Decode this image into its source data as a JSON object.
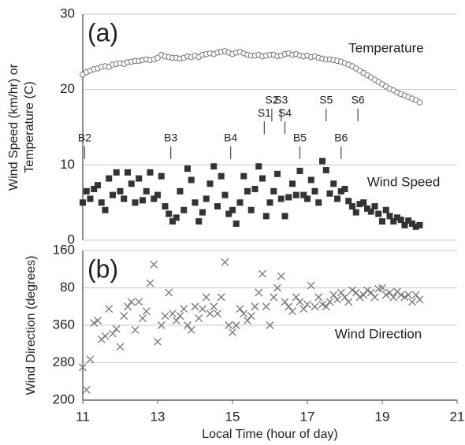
{
  "chart_data": [
    {
      "type": "scatter",
      "panel_label": "(a)",
      "ylabel": [
        "Wind Speed (km/hr) or",
        "Temperature (C)"
      ],
      "xlim": [
        11,
        21
      ],
      "ylim": [
        0,
        30
      ],
      "yticks": [
        0,
        10,
        20,
        30
      ],
      "grid": true,
      "series": [
        {
          "name": "Temperature",
          "marker": "circle",
          "color": "#777777",
          "x": [
            11.0,
            11.1,
            11.2,
            11.3,
            11.4,
            11.5,
            11.6,
            11.7,
            11.8,
            11.9,
            12.0,
            12.1,
            12.2,
            12.3,
            12.4,
            12.5,
            12.6,
            12.7,
            12.8,
            12.9,
            13.0,
            13.1,
            13.2,
            13.3,
            13.4,
            13.5,
            13.6,
            13.7,
            13.8,
            13.9,
            14.0,
            14.1,
            14.2,
            14.3,
            14.4,
            14.5,
            14.6,
            14.7,
            14.8,
            14.9,
            15.0,
            15.1,
            15.2,
            15.3,
            15.4,
            15.5,
            15.6,
            15.7,
            15.8,
            15.9,
            16.0,
            16.1,
            16.2,
            16.3,
            16.4,
            16.5,
            16.6,
            16.7,
            16.8,
            16.9,
            17.0,
            17.1,
            17.2,
            17.3,
            17.4,
            17.5,
            17.6,
            17.7,
            17.8,
            17.9,
            18.0,
            18.1,
            18.2,
            18.3,
            18.4,
            18.5,
            18.6,
            18.7,
            18.8,
            18.9,
            19.0,
            19.1,
            19.2,
            19.3,
            19.4,
            19.5,
            19.6,
            19.7,
            19.8,
            19.9,
            20.0
          ],
          "values": [
            22.0,
            22.3,
            22.5,
            22.7,
            22.8,
            23.0,
            23.1,
            23.0,
            23.3,
            23.4,
            23.5,
            23.4,
            23.6,
            23.7,
            23.8,
            23.8,
            23.9,
            24.0,
            23.9,
            24.0,
            24.2,
            24.6,
            24.4,
            24.3,
            24.2,
            24.2,
            24.1,
            24.2,
            24.4,
            24.3,
            24.5,
            24.3,
            24.6,
            24.7,
            24.8,
            24.7,
            24.9,
            25.0,
            25.1,
            24.9,
            24.7,
            24.9,
            25.0,
            24.8,
            24.6,
            24.5,
            24.5,
            24.6,
            24.4,
            24.5,
            24.6,
            24.6,
            24.4,
            24.5,
            24.7,
            24.8,
            24.6,
            24.7,
            24.5,
            24.4,
            24.5,
            24.3,
            24.4,
            24.2,
            24.1,
            24.0,
            24.0,
            23.9,
            23.8,
            23.7,
            23.5,
            23.3,
            23.1,
            22.8,
            22.5,
            22.2,
            21.9,
            21.6,
            21.3,
            21.0,
            20.7,
            20.4,
            20.1,
            19.9,
            19.6,
            19.4,
            19.2,
            19.0,
            18.8,
            18.6,
            18.3
          ]
        },
        {
          "name": "Wind Speed",
          "marker": "square",
          "color": "#333333",
          "x": [
            11.0,
            11.1,
            11.2,
            11.3,
            11.4,
            11.5,
            11.6,
            11.7,
            11.8,
            11.9,
            12.0,
            12.1,
            12.2,
            12.3,
            12.4,
            12.5,
            12.6,
            12.7,
            12.8,
            12.9,
            13.0,
            13.1,
            13.2,
            13.3,
            13.4,
            13.5,
            13.6,
            13.7,
            13.8,
            13.9,
            14.0,
            14.1,
            14.2,
            14.3,
            14.4,
            14.5,
            14.6,
            14.7,
            14.8,
            14.9,
            15.0,
            15.1,
            15.2,
            15.3,
            15.4,
            15.5,
            15.6,
            15.7,
            15.8,
            15.9,
            16.0,
            16.1,
            16.2,
            16.3,
            16.4,
            16.5,
            16.6,
            16.7,
            16.8,
            16.9,
            17.0,
            17.1,
            17.2,
            17.3,
            17.4,
            17.5,
            17.6,
            17.7,
            17.8,
            17.9,
            18.0,
            18.1,
            18.2,
            18.3,
            18.4,
            18.5,
            18.6,
            18.7,
            18.8,
            18.9,
            19.0,
            19.1,
            19.2,
            19.3,
            19.4,
            19.5,
            19.6,
            19.7,
            19.8,
            19.9,
            20.0
          ],
          "values": [
            5,
            6.5,
            5.5,
            6.8,
            7.3,
            5,
            4,
            8.2,
            6,
            9,
            6.5,
            5.5,
            9,
            7.5,
            5,
            8.2,
            5.3,
            6.5,
            9,
            5.5,
            6,
            8.5,
            4.5,
            3.5,
            2.5,
            3,
            6.5,
            4,
            9.5,
            8,
            5,
            2.5,
            3.7,
            5.5,
            7.5,
            9.8,
            4.5,
            8.5,
            6,
            3.5,
            4,
            2.2,
            5,
            8.5,
            6.5,
            4,
            6.8,
            9.8,
            8.2,
            3.2,
            5,
            6.5,
            8.8,
            5.5,
            3.2,
            5.7,
            7.5,
            6,
            9.2,
            6,
            5.5,
            8,
            6.5,
            5,
            10.5,
            9.3,
            6.2,
            7.5,
            5.5,
            6.5,
            6.8,
            5.2,
            4.5,
            3.7,
            4.8,
            5,
            4.2,
            3.8,
            4.5,
            3.5,
            2.5,
            4,
            3.2,
            2.5,
            3,
            2.7,
            2,
            2.6,
            2.2,
            1.8,
            2
          ]
        }
      ],
      "annotations": [
        {
          "text": "B2",
          "x": 11.05,
          "y": 13.5
        },
        {
          "text": "B3",
          "x": 13.35,
          "y": 13.5
        },
        {
          "text": "B4",
          "x": 14.95,
          "y": 13.5
        },
        {
          "text": "B5",
          "x": 16.8,
          "y": 13.5
        },
        {
          "text": "B6",
          "x": 17.9,
          "y": 13.5
        },
        {
          "text": "S1",
          "x": 15.85,
          "y": 16.8
        },
        {
          "text": "S2",
          "x": 16.05,
          "y": 18.5
        },
        {
          "text": "S3",
          "x": 16.3,
          "y": 18.5
        },
        {
          "text": "S4",
          "x": 16.4,
          "y": 16.8
        },
        {
          "text": "S5",
          "x": 17.5,
          "y": 18.5
        },
        {
          "text": "S6",
          "x": 18.35,
          "y": 18.5
        }
      ]
    },
    {
      "type": "scatter",
      "panel_label": "(b)",
      "ylabel": [
        "Wind Direction (degrees)"
      ],
      "xlabel": "Local Time (hour of day)",
      "xlim": [
        11,
        21
      ],
      "xticks": [
        11,
        13,
        15,
        17,
        19,
        21
      ],
      "ylim": [
        200,
        520
      ],
      "yticks": [
        200,
        280,
        360,
        {
          "value": 440,
          "label": "80"
        },
        {
          "value": 520,
          "label": "160"
        }
      ],
      "grid": true,
      "series": [
        {
          "name": "Wind Direction",
          "marker": "cross",
          "color": "#777777",
          "x": [
            11.0,
            11.1,
            11.2,
            11.3,
            11.4,
            11.5,
            11.6,
            11.7,
            11.8,
            11.9,
            12.0,
            12.1,
            12.2,
            12.3,
            12.4,
            12.5,
            12.6,
            12.7,
            12.8,
            12.9,
            13.0,
            13.1,
            13.2,
            13.3,
            13.4,
            13.5,
            13.6,
            13.7,
            13.8,
            13.9,
            14.0,
            14.1,
            14.2,
            14.3,
            14.4,
            14.5,
            14.6,
            14.7,
            14.8,
            14.9,
            15.0,
            15.1,
            15.2,
            15.3,
            15.4,
            15.5,
            15.6,
            15.7,
            15.8,
            15.9,
            16.0,
            16.1,
            16.2,
            16.3,
            16.4,
            16.5,
            16.6,
            16.7,
            16.8,
            16.9,
            17.0,
            17.1,
            17.2,
            17.3,
            17.4,
            17.5,
            17.6,
            17.7,
            17.8,
            17.9,
            18.0,
            18.1,
            18.2,
            18.3,
            18.4,
            18.5,
            18.6,
            18.7,
            18.8,
            18.9,
            19.0,
            19.1,
            19.2,
            19.3,
            19.4,
            19.5,
            19.6,
            19.7,
            19.8,
            19.9,
            20.0
          ],
          "values": [
            270,
            222,
            287,
            365,
            370,
            330,
            337,
            395,
            342,
            352,
            314,
            380,
            400,
            410,
            350,
            410,
            375,
            390,
            450,
            490,
            325,
            360,
            380,
            430,
            385,
            370,
            380,
            395,
            360,
            350,
            400,
            375,
            395,
            420,
            385,
            400,
            385,
            420,
            495,
            360,
            345,
            360,
            395,
            385,
            370,
            380,
            400,
            430,
            470,
            400,
            360,
            420,
            440,
            465,
            410,
            400,
            390,
            420,
            410,
            395,
            405,
            445,
            400,
            420,
            405,
            400,
            410,
            425,
            415,
            430,
            420,
            410,
            435,
            430,
            420,
            425,
            435,
            430,
            420,
            438,
            440,
            425,
            430,
            420,
            432,
            425,
            420,
            425,
            410,
            425,
            415
          ]
        }
      ]
    }
  ]
}
